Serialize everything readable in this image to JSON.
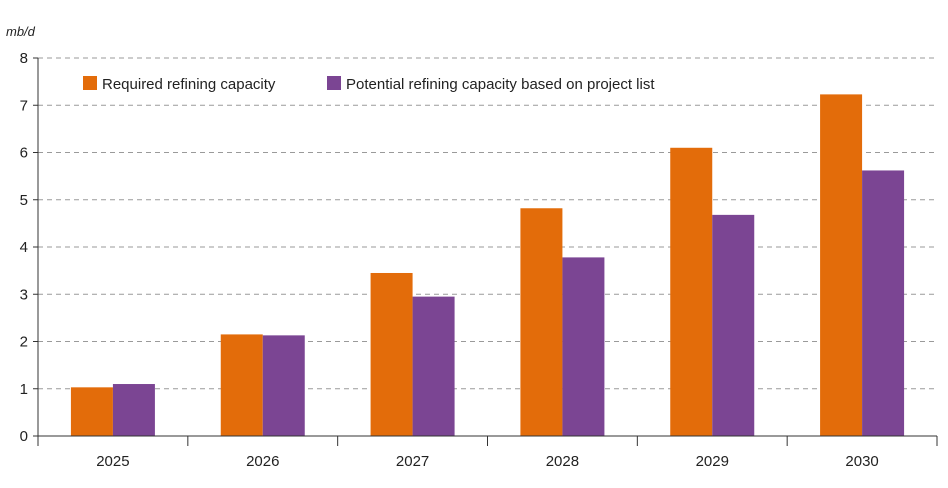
{
  "chart_data": {
    "type": "bar",
    "ylabel": "mb/d",
    "ylim": [
      0,
      8
    ],
    "yticks": [
      0,
      1,
      2,
      3,
      4,
      5,
      6,
      7,
      8
    ],
    "grid": "horizontal dashed",
    "legend_position": "top-left",
    "categories": [
      "2025",
      "2026",
      "2027",
      "2028",
      "2029",
      "2030"
    ],
    "series": [
      {
        "name": "Required refining capacity",
        "color": "#E36C0A",
        "values": [
          1.03,
          2.15,
          3.45,
          4.82,
          6.1,
          7.23
        ]
      },
      {
        "name": "Potential refining capacity based on project list",
        "color": "#7B4593",
        "values": [
          1.1,
          2.13,
          2.95,
          3.78,
          4.68,
          5.62
        ]
      }
    ]
  }
}
